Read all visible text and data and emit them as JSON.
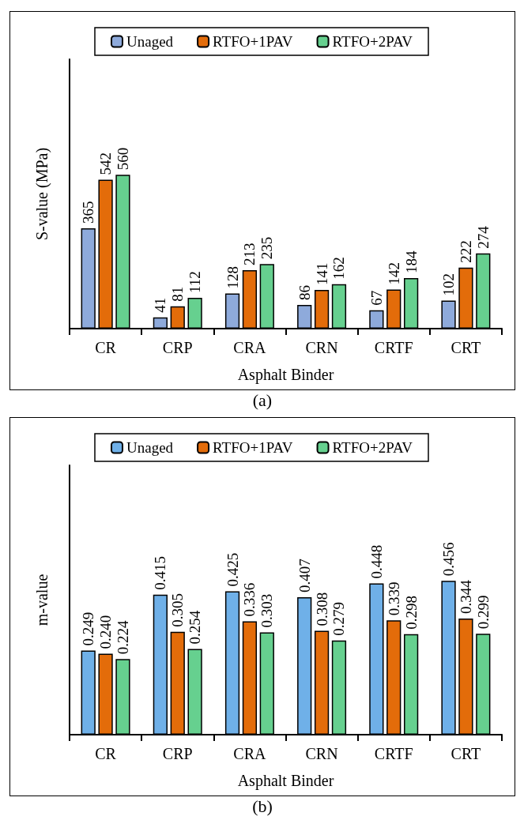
{
  "chart_data": [
    {
      "type": "bar",
      "xlabel": "Asphalt Binder",
      "ylabel": "S-value (MPa)",
      "categories": [
        "CR",
        "CRP",
        "CRA",
        "CRN",
        "CRTF",
        "CRT"
      ],
      "series": [
        {
          "name": "Unaged",
          "color": "#8eaadb",
          "values": [
            365,
            41,
            128,
            86,
            67,
            102
          ]
        },
        {
          "name": "RTFO+1PAV",
          "color": "#e36c0a",
          "values": [
            542,
            81,
            213,
            141,
            142,
            222
          ]
        },
        {
          "name": "RTFO+2PAV",
          "color": "#66d08f",
          "values": [
            560,
            112,
            235,
            162,
            184,
            274
          ]
        }
      ],
      "data_labels": true,
      "legend": "top",
      "grid": false,
      "annotations": [
        "(a)"
      ]
    },
    {
      "type": "bar",
      "xlabel": "Asphalt Binder",
      "ylabel": "m-value",
      "categories": [
        "CR",
        "CRP",
        "CRA",
        "CRN",
        "CRTF",
        "CRT"
      ],
      "series": [
        {
          "name": "Unaged",
          "color": "#6fb0e8",
          "values": [
            0.249,
            0.415,
            0.425,
            0.407,
            0.448,
            0.456
          ],
          "value_labels": [
            "0.249",
            "0.415",
            "0.425",
            "0.407",
            "0.448",
            "0.456"
          ]
        },
        {
          "name": "RTFO+1PAV",
          "color": "#e36c0a",
          "values": [
            0.24,
            0.305,
            0.336,
            0.308,
            0.339,
            0.344
          ],
          "value_labels": [
            "0.240",
            "0.305",
            "0.336",
            "0.308",
            "0.339",
            "0.344"
          ]
        },
        {
          "name": "RTFO+2PAV",
          "color": "#66d08f",
          "values": [
            0.224,
            0.254,
            0.303,
            0.279,
            0.298,
            0.299
          ],
          "value_labels": [
            "0.224",
            "0.254",
            "0.303",
            "0.279",
            "0.298",
            "0.299"
          ]
        }
      ],
      "legend": "top",
      "grid": false,
      "annotations": [
        "(b)"
      ]
    }
  ]
}
